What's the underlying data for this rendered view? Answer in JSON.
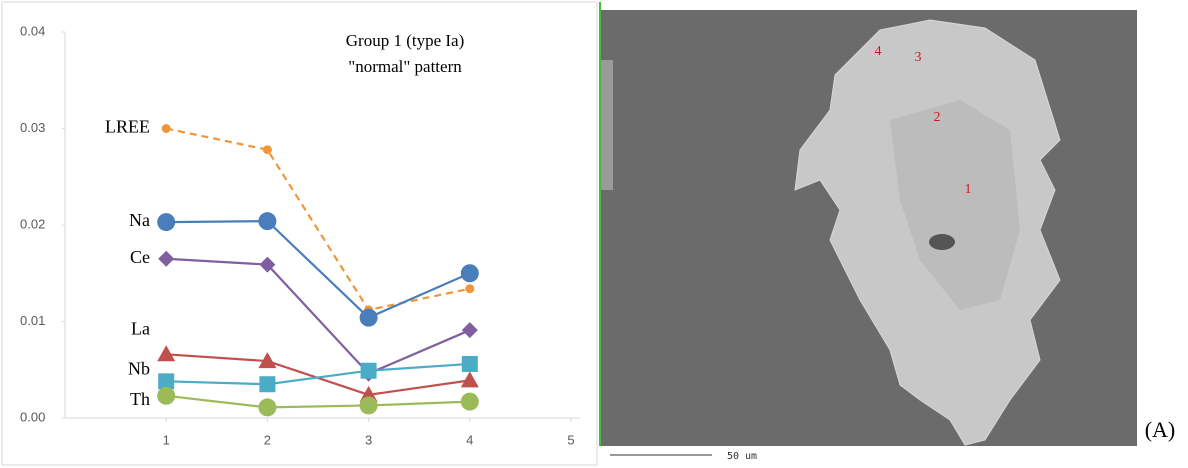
{
  "chart_data": {
    "type": "line",
    "title": "Group 1 (type Ia)",
    "subtitle": "\"normal\" pattern",
    "x": [
      1,
      2,
      3,
      4
    ],
    "xlim": [
      0,
      5
    ],
    "xticks": [
      1,
      2,
      3,
      4,
      5
    ],
    "ylim": [
      0,
      0.04
    ],
    "yticks": [
      {
        "value": 0,
        "label": "0.00"
      },
      0.01,
      0.02,
      0.03,
      0.04
    ],
    "grid": false,
    "series": [
      {
        "name": "LREE",
        "color": "#f0953a",
        "marker": "dot",
        "line_style": "dashed",
        "values": [
          0.03,
          0.0278,
          0.0112,
          0.0134
        ]
      },
      {
        "name": "Na",
        "color": "#4a7ebb",
        "marker": "circle",
        "line_style": "solid",
        "values": [
          0.0203,
          0.0204,
          0.0104,
          0.015
        ]
      },
      {
        "name": "Ce",
        "color": "#7f5fa0",
        "marker": "diamond",
        "line_style": "solid",
        "values": [
          0.0165,
          0.0159,
          0.0046,
          0.0091
        ]
      },
      {
        "name": "La",
        "color": "#c0504d",
        "marker": "triangle",
        "line_style": "solid",
        "values": [
          0.0066,
          0.0059,
          0.0024,
          0.0039
        ]
      },
      {
        "name": "Nb",
        "color": "#4bacc6",
        "marker": "square",
        "line_style": "solid",
        "values": [
          0.0038,
          0.0035,
          0.0049,
          0.0056
        ]
      },
      {
        "name": "Th",
        "color": "#9bbb59",
        "marker": "circle",
        "line_style": "solid",
        "values": [
          0.0023,
          0.0011,
          0.0013,
          0.0017
        ]
      }
    ]
  },
  "image": {
    "labels": [
      "1",
      "2",
      "3",
      "4"
    ],
    "scale_bar": "50 um"
  },
  "caption": "(A)"
}
